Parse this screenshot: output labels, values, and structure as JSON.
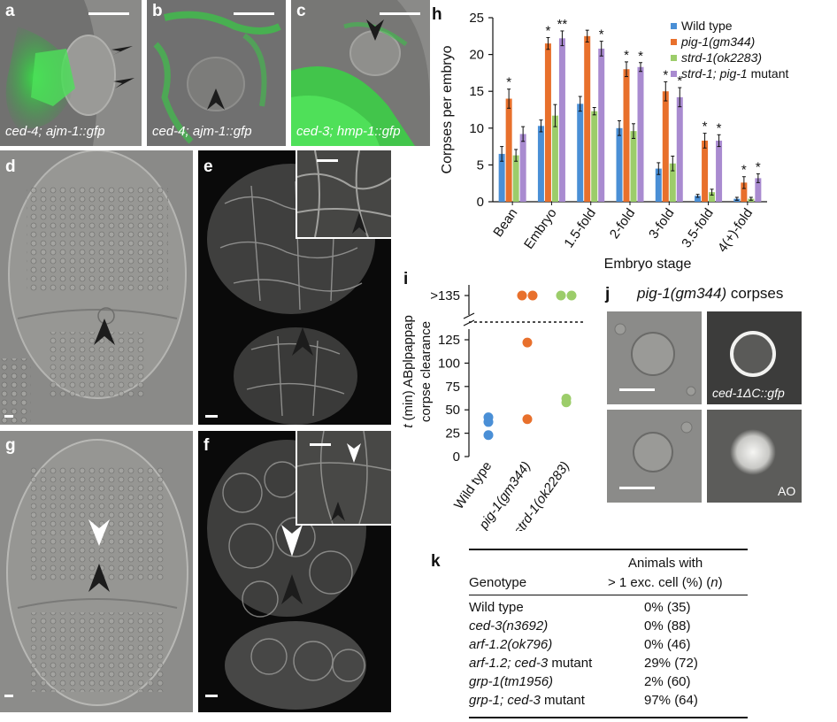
{
  "panels": {
    "a": {
      "label": "a",
      "caption": "ced-4; ajm-1::gfp"
    },
    "b": {
      "label": "b",
      "caption": "ced-4; ajm-1::gfp"
    },
    "c": {
      "label": "c",
      "caption": "ced-3; hmp-1::gfp"
    },
    "d": {
      "label": "d"
    },
    "e": {
      "label": "e"
    },
    "f": {
      "label": "f"
    },
    "g": {
      "label": "g"
    },
    "h": {
      "label": "h"
    },
    "i": {
      "label": "i"
    },
    "j": {
      "label": "j",
      "title_italic": "pig-1(gm344)",
      "title_rest": " corpses",
      "caption_top": "ced-1ΔC::gfp",
      "caption_bottom": "AO"
    },
    "k": {
      "label": "k"
    }
  },
  "colors": {
    "wild_type": "#4a8fd6",
    "pig1": "#e8702c",
    "strd1": "#9ccd6a",
    "double": "#a98bd0"
  },
  "chart_data": [
    {
      "type": "bar",
      "panel": "h",
      "ylabel": "Corpses per embryo",
      "xlabel": "Embryo stage",
      "ylim": [
        0,
        25
      ],
      "yticks": [
        "0",
        "5",
        "10",
        "15",
        "20",
        "25"
      ],
      "categories": [
        "Bean",
        "Embryo",
        "1.5-fold",
        "2-fold",
        "3-fold",
        "3.5-fold",
        "4(+)-fold"
      ],
      "legend_position": "top-right",
      "series": [
        {
          "name": "Wild type",
          "italic": false,
          "values": [
            6.5,
            10.3,
            13.3,
            10.0,
            4.5,
            0.8,
            0.4
          ],
          "errors": [
            1.0,
            0.8,
            1.0,
            1.0,
            0.8,
            0.2,
            0.2
          ]
        },
        {
          "name": "pig-1(gm344)",
          "italic": true,
          "values": [
            14.0,
            21.5,
            22.5,
            18.0,
            15.0,
            8.3,
            2.6
          ],
          "errors": [
            1.3,
            0.8,
            0.8,
            1.0,
            1.3,
            1.0,
            0.8
          ]
        },
        {
          "name": "strd-1(ok2283)",
          "italic": true,
          "values": [
            6.3,
            11.7,
            12.3,
            9.6,
            5.2,
            1.3,
            0.4
          ],
          "errors": [
            0.8,
            1.5,
            0.5,
            1.0,
            1.0,
            0.4,
            0.2
          ]
        },
        {
          "name": "strd-1; pig-1",
          "italic": true,
          "suffix": " mutant",
          "values": [
            9.2,
            22.2,
            20.8,
            18.3,
            14.2,
            8.3,
            3.2
          ],
          "errors": [
            1.0,
            1.0,
            1.0,
            0.6,
            1.3,
            0.8,
            0.6
          ]
        }
      ],
      "annotations": [
        {
          "category": "Bean",
          "series": 1,
          "text": "*"
        },
        {
          "category": "Embryo",
          "series": 1,
          "text": "*"
        },
        {
          "category": "Embryo",
          "series": 3,
          "text": "**"
        },
        {
          "category": "1.5-fold",
          "series": 3,
          "text": "*"
        },
        {
          "category": "2-fold",
          "series": 1,
          "text": "*"
        },
        {
          "category": "2-fold",
          "series": 3,
          "text": "*"
        },
        {
          "category": "3-fold",
          "series": 1,
          "text": "*"
        },
        {
          "category": "3-fold",
          "series": 3,
          "text": "*"
        },
        {
          "category": "3.5-fold",
          "series": 1,
          "text": "*"
        },
        {
          "category": "3.5-fold",
          "series": 3,
          "text": "*"
        },
        {
          "category": "4(+)-fold",
          "series": 1,
          "text": "*"
        },
        {
          "category": "4(+)-fold",
          "series": 3,
          "text": "*"
        }
      ]
    },
    {
      "type": "scatter",
      "panel": "i",
      "ylabel_italic": "t",
      "ylabel_rest": " (min) ABplpappap",
      "ylabel_line2": "corpse clearance",
      "ylim": [
        0,
        125
      ],
      "yticks": [
        "0",
        "25",
        "50",
        "75",
        "100",
        "125"
      ],
      "break_label": ">135",
      "categories": [
        "Wild type",
        "pig-1(gm344)",
        "strd-1(ok2283)"
      ],
      "categories_italic": [
        false,
        true,
        true
      ],
      "series": [
        {
          "category": "Wild type",
          "values": [
            23,
            37,
            42
          ],
          "above_break": 0
        },
        {
          "category": "pig-1(gm344)",
          "values": [
            40,
            122
          ],
          "above_break": 2
        },
        {
          "category": "strd-1(ok2283)",
          "values": [
            58,
            62
          ],
          "above_break": 2
        }
      ]
    },
    {
      "type": "table",
      "panel": "k",
      "columns": [
        "Genotype",
        "Animals with",
        "> 1 exc. cell (%) (",
        "n",
        ")"
      ],
      "rows": [
        {
          "genotype": "Wild type",
          "italic": false,
          "value": "0% (35)"
        },
        {
          "genotype": "ced-3(n3692)",
          "italic": true,
          "value": "0% (88)"
        },
        {
          "genotype": "arf-1.2(ok796)",
          "italic": true,
          "value": "0% (46)"
        },
        {
          "genotype": "arf-1.2; ced-3",
          "suffix": " mutant",
          "italic": true,
          "value": "29% (72)"
        },
        {
          "genotype": "grp-1(tm1956)",
          "italic": true,
          "value": "2% (60)"
        },
        {
          "genotype": "grp-1; ced-3",
          "suffix": " mutant",
          "italic": true,
          "value": "97% (64)"
        }
      ]
    }
  ]
}
